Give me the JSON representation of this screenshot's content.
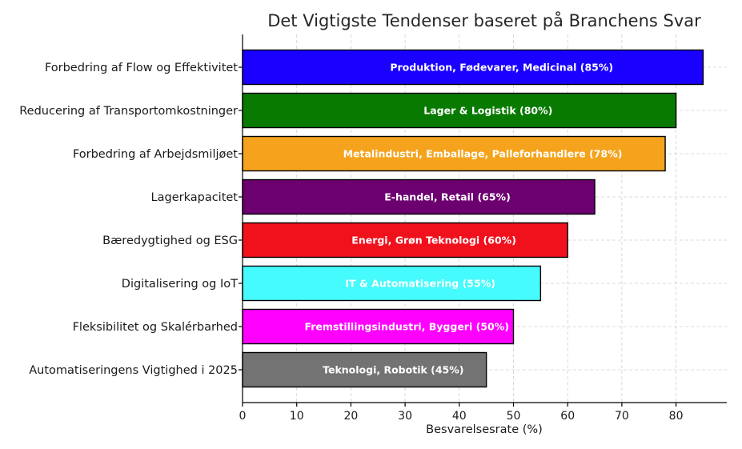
{
  "chart_data": {
    "type": "bar",
    "orientation": "horizontal",
    "title": "Det Vigtigste Tendenser baseret på Branchens Svar",
    "xlabel": "Besvarelsesrate (%)",
    "ylabel": "",
    "xlim": [
      0,
      90
    ],
    "xticks": [
      0,
      10,
      20,
      30,
      40,
      50,
      60,
      70,
      80
    ],
    "grid": true,
    "categories": [
      "Forbedring af Flow og Effektivitet",
      "Reducering af Transportomkostninger",
      "Forbedring af Arbejdsmiljøet",
      "Lagerkapacitet",
      "Bæredygtighed og ESG",
      "Digitalisering og IoT",
      "Fleksibilitet og Skalérbarhed",
      "Automatiseringens Vigtighed i 2025"
    ],
    "values": [
      85,
      80,
      78,
      65,
      60,
      55,
      50,
      45
    ],
    "bar_labels": [
      "Produktion, Fødevarer, Medicinal (85%)",
      "Lager & Logistik (80%)",
      "Metalindustri, Emballage, Palleforhandlere (78%)",
      "E-handel, Retail (65%)",
      "Energi, Grøn Teknologi (60%)",
      "IT & Automatisering (55%)",
      "Fremstillingsindustri, Byggeri (50%)",
      "Teknologi, Robotik (45%)"
    ],
    "colors": [
      "#1a00ff",
      "#087a00",
      "#f5a31c",
      "#6d0070",
      "#f0111d",
      "#45fbfd",
      "#ff00ff",
      "#737373"
    ]
  }
}
